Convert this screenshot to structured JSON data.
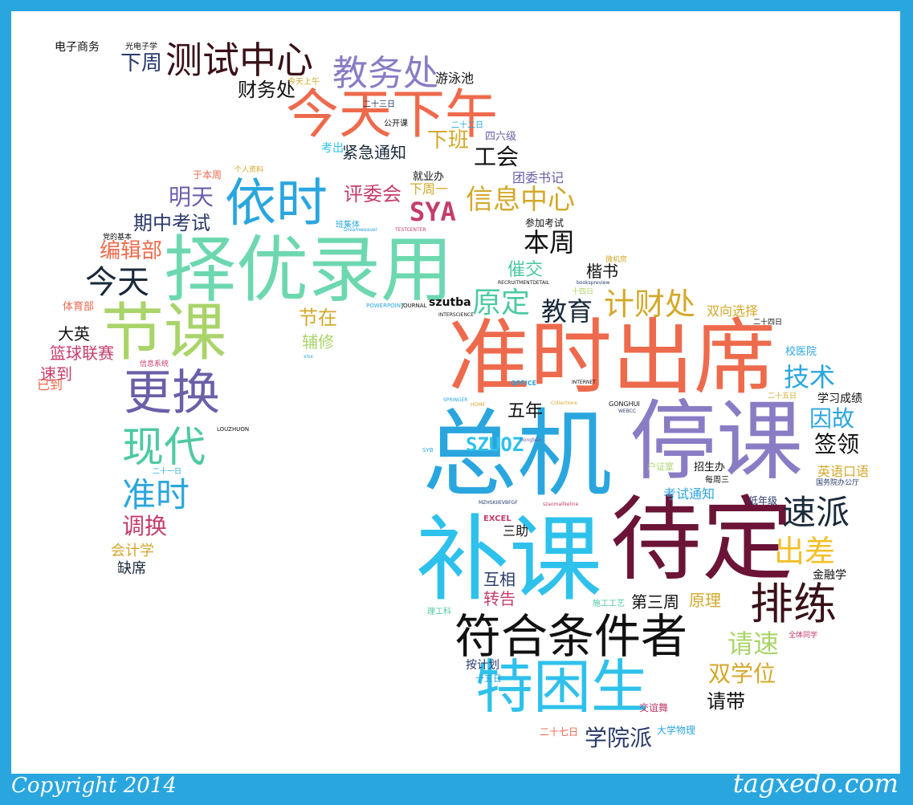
{
  "footer": {
    "copyright": "Copyright 2014",
    "brand": "tagxedo.com"
  },
  "words": [
    {
      "text": "补课",
      "color": "#2ec1ec"
    },
    {
      "text": "待定",
      "color": "#6b1437"
    },
    {
      "text": "总机",
      "color": "#2aa6df"
    },
    {
      "text": "停课",
      "color": "#8a7cc4"
    },
    {
      "text": "准时出席",
      "color": "#ee6a4c"
    },
    {
      "text": "择优录用",
      "color": "#6dd8b0"
    },
    {
      "text": "特困生",
      "color": "#2ec1ec"
    },
    {
      "text": "符合条件者",
      "color": "#111111"
    },
    {
      "text": "今天下午",
      "color": "#ee6a4c"
    },
    {
      "text": "节课",
      "color": "#a9d46a"
    },
    {
      "text": "依时",
      "color": "#2aa6df"
    },
    {
      "text": "测试中心",
      "color": "#3a1118"
    },
    {
      "text": "更换",
      "color": "#6b5fa8"
    },
    {
      "text": "现代",
      "color": "#4ec9a3"
    },
    {
      "text": "排练",
      "color": "#3a1118"
    },
    {
      "text": "速派",
      "color": "#1a2a3a"
    },
    {
      "text": "教务处",
      "color": "#8a7cc4"
    },
    {
      "text": "准时",
      "color": "#2aa6df"
    },
    {
      "text": "今天",
      "color": "#1a2a3a"
    },
    {
      "text": "出差",
      "color": "#f2c02a"
    },
    {
      "text": "计财处",
      "color": "#d4a82a"
    },
    {
      "text": "信息中心",
      "color": "#d4a82a"
    },
    {
      "text": "原定",
      "color": "#4ec9a3"
    },
    {
      "text": "教育",
      "color": "#1a2a3a"
    },
    {
      "text": "本周",
      "color": "#111111"
    },
    {
      "text": "技术",
      "color": "#2aa6df"
    },
    {
      "text": "因故",
      "color": "#2aa6df"
    },
    {
      "text": "请速",
      "color": "#a9d46a"
    },
    {
      "text": "签领",
      "color": "#111111"
    },
    {
      "text": "调换",
      "color": "#c43c6a"
    },
    {
      "text": "工会",
      "color": "#111111"
    },
    {
      "text": "明天",
      "color": "#6b5fa8"
    },
    {
      "text": "编辑部",
      "color": "#ee6a4c"
    },
    {
      "text": "下周",
      "color": "#2a3a6a"
    },
    {
      "text": "双学位",
      "color": "#d4a82a"
    },
    {
      "text": "学院派",
      "color": "#2a3a6a"
    },
    {
      "text": "评委会",
      "color": "#c43c6a"
    },
    {
      "text": "下班",
      "color": "#d4a82a"
    },
    {
      "text": "期中考试",
      "color": "#2a3a6a"
    },
    {
      "text": "财务处",
      "color": "#111111"
    },
    {
      "text": "节在",
      "color": "#d4a82a"
    },
    {
      "text": "紧急通知",
      "color": "#1a2a3a"
    },
    {
      "text": "请带",
      "color": "#111111"
    },
    {
      "text": "五年",
      "color": "#111111"
    },
    {
      "text": "催交",
      "color": "#4ec9a3"
    },
    {
      "text": "楷书",
      "color": "#111111"
    },
    {
      "text": "互相",
      "color": "#2a3a6a"
    },
    {
      "text": "转告",
      "color": "#c43c6a"
    },
    {
      "text": "原理",
      "color": "#d4a82a"
    },
    {
      "text": "第三周",
      "color": "#111111"
    },
    {
      "text": "游泳池",
      "color": "#111111"
    },
    {
      "text": "篮球联赛",
      "color": "#c43c6a"
    },
    {
      "text": "速到",
      "color": "#c43c6a"
    },
    {
      "text": "大英",
      "color": "#111111"
    },
    {
      "text": "辅修",
      "color": "#a9d46a"
    },
    {
      "text": "会计学",
      "color": "#d4a82a"
    },
    {
      "text": "缺席",
      "color": "#1a2a3a"
    },
    {
      "text": "英语口语",
      "color": "#d4a82a"
    },
    {
      "text": "学习成绩",
      "color": "#111111"
    },
    {
      "text": "双向选择",
      "color": "#d4a82a"
    },
    {
      "text": "团委书记",
      "color": "#6b5fa8"
    },
    {
      "text": "下周一",
      "color": "#d4a82a"
    },
    {
      "text": "考试通知",
      "color": "#2aa6df"
    },
    {
      "text": "三助",
      "color": "#111111"
    },
    {
      "text": "金融学",
      "color": "#111111"
    },
    {
      "text": "按计划",
      "color": "#2a3a6a"
    },
    {
      "text": "已到",
      "color": "#ee6a4c"
    },
    {
      "text": "电子商务",
      "color": "#111111"
    },
    {
      "text": "参加考试",
      "color": "#111111"
    },
    {
      "text": "考出",
      "color": "#2ec1ec"
    },
    {
      "text": "四六级",
      "color": "#6b5fa8"
    },
    {
      "text": "招生办",
      "color": "#111111"
    },
    {
      "text": "校医院",
      "color": "#2aa6df"
    },
    {
      "text": "低年级",
      "color": "#2a3a6a"
    },
    {
      "text": "就业办",
      "color": "#111111"
    },
    {
      "text": "体育部",
      "color": "#ee6a4c"
    },
    {
      "text": "交谊舞",
      "color": "#c43c6a"
    },
    {
      "text": "大学物理",
      "color": "#2aa6df"
    },
    {
      "text": "二十七日",
      "color": "#ee6a4c"
    },
    {
      "text": "十五日",
      "color": "#2aa6df"
    },
    {
      "text": "光电子学",
      "color": "#111111"
    },
    {
      "text": "今天上午",
      "color": "#d4a82a"
    },
    {
      "text": "二十三日",
      "color": "#2a3a6a"
    },
    {
      "text": "二十二日",
      "color": "#2aa6df"
    },
    {
      "text": "公开课",
      "color": "#111111"
    },
    {
      "text": "于本周",
      "color": "#ee6a4c"
    },
    {
      "text": "个人资料",
      "color": "#d4a82a"
    },
    {
      "text": "党的基本",
      "color": "#111111"
    },
    {
      "text": "班集体",
      "color": "#2aa6df"
    },
    {
      "text": "信息系统",
      "color": "#c43c6a"
    },
    {
      "text": "二十一日",
      "color": "#2aa6df"
    },
    {
      "text": "微机房",
      "color": "#d4a82a"
    },
    {
      "text": "十四日",
      "color": "#a9d46a"
    },
    {
      "text": "二十四日",
      "color": "#111111"
    },
    {
      "text": "二十五日",
      "color": "#d4a82a"
    },
    {
      "text": "户证室",
      "color": "#a9d46a"
    },
    {
      "text": "每周三",
      "color": "#111111"
    },
    {
      "text": "国务院办公厅",
      "color": "#2a3a6a"
    },
    {
      "text": "理工科",
      "color": "#4ec9a3"
    },
    {
      "text": "施工工艺",
      "color": "#4ec9a3"
    },
    {
      "text": "全体同学",
      "color": "#c43c6a"
    },
    {
      "text": "SYA",
      "color": "#c43c6a"
    },
    {
      "text": "SZUOZ",
      "color": "#2ec1ec"
    },
    {
      "text": "szutba",
      "color": "#111111"
    },
    {
      "text": "EXCEL",
      "color": "#c43c6a"
    },
    {
      "text": "POWERPOINT",
      "color": "#2aa6df"
    },
    {
      "text": "JOURNAL",
      "color": "#111111"
    },
    {
      "text": "INTERSCIENCE",
      "color": "#111111"
    },
    {
      "text": "RECRUITMENTDETAIL",
      "color": "#111111"
    },
    {
      "text": "Dreamweaver",
      "color": "#2aa6df"
    },
    {
      "text": "TESTCENTER",
      "color": "#c43c6a"
    },
    {
      "text": "OFFICE",
      "color": "#2aa6df"
    },
    {
      "text": "INTERNET",
      "color": "#111111"
    },
    {
      "text": "GONGHUI",
      "color": "#111111"
    },
    {
      "text": "WEBCC",
      "color": "#2a3a6a"
    },
    {
      "text": "Collections",
      "color": "#d4a82a"
    },
    {
      "text": "SPRINGER",
      "color": "#2aa6df"
    },
    {
      "text": "HOME",
      "color": "#d4a82a"
    },
    {
      "text": "LOUZHUON",
      "color": "#111111"
    },
    {
      "text": "SYB",
      "color": "#2aa6df"
    },
    {
      "text": "bookspreview",
      "color": "#2a3a6a"
    },
    {
      "text": "hongbao",
      "color": "#6b5fa8"
    },
    {
      "text": "MZHSKIIEVBFGF",
      "color": "#2a3a6a"
    },
    {
      "text": "szaomallkeline",
      "color": "#c43c6a"
    },
    {
      "text": "xlsx",
      "color": "#2aa6df"
    }
  ]
}
